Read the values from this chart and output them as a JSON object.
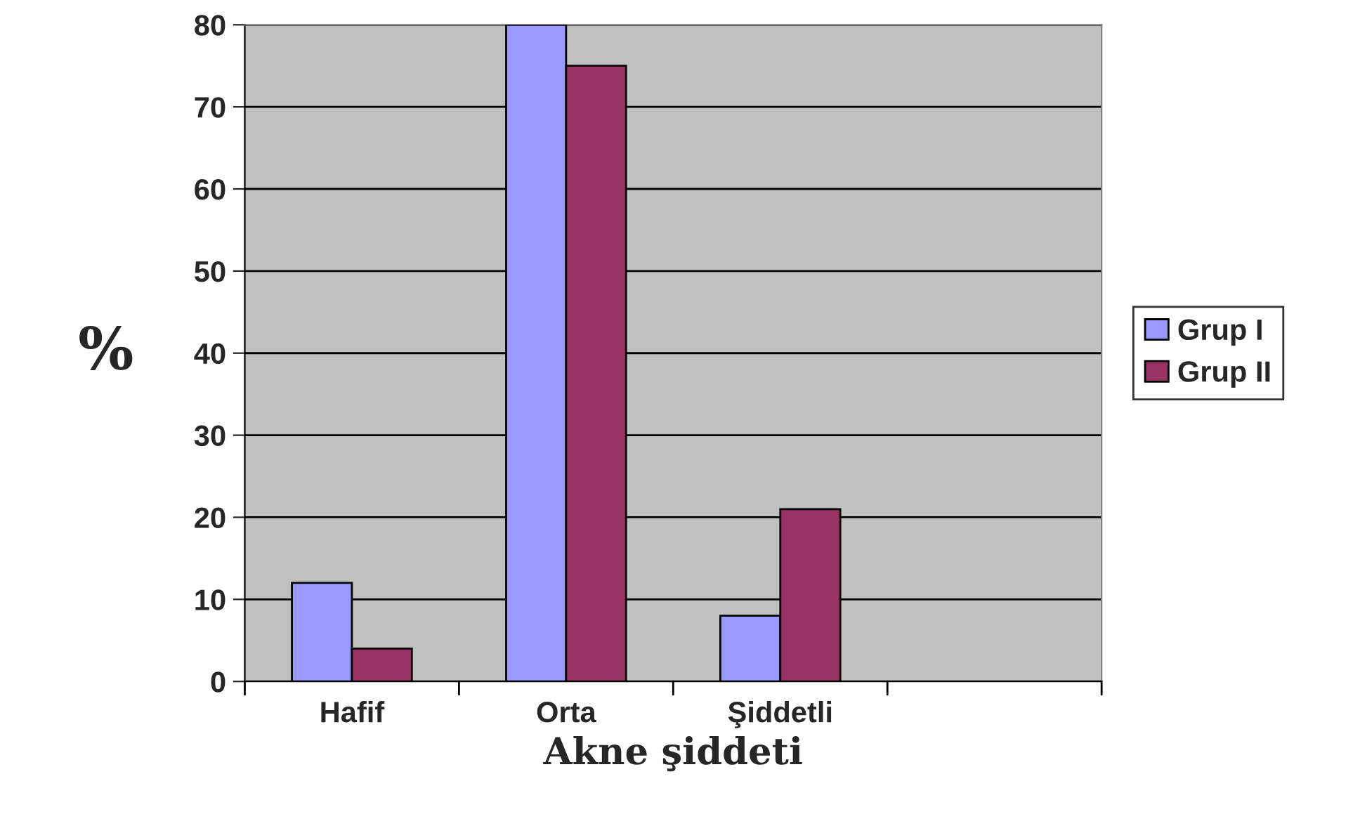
{
  "chart_data": {
    "type": "bar",
    "categories": [
      "Hafif",
      "Orta",
      "Şiddetli",
      null
    ],
    "series": [
      {
        "name": "Grup I",
        "color": "#9999ff",
        "values": [
          12,
          80,
          8,
          null
        ]
      },
      {
        "name": "Grup II",
        "color": "#993366",
        "values": [
          4,
          75,
          21,
          null
        ]
      }
    ],
    "xlabel": "Akne şiddeti",
    "ylabel": "%",
    "ylim": [
      0,
      80
    ],
    "yticks": [
      0,
      10,
      20,
      30,
      40,
      50,
      60,
      70,
      80
    ],
    "grid": "y",
    "legend": "right"
  }
}
